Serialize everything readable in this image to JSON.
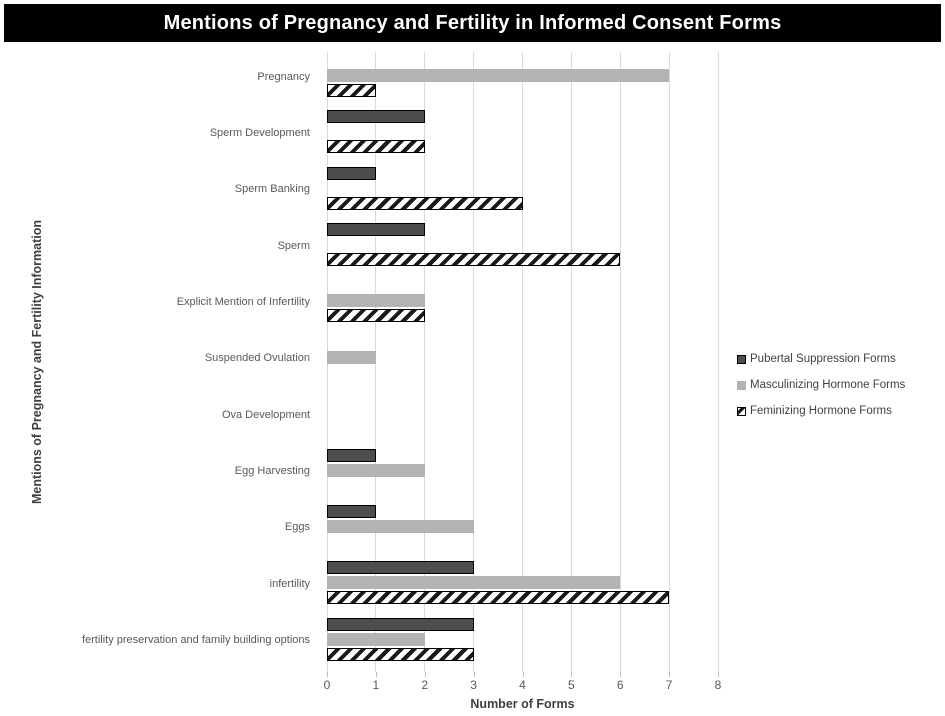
{
  "title": "Mentions of Pregnancy and Fertility in Informed Consent Forms",
  "chart_data": {
    "type": "bar",
    "orientation": "horizontal",
    "title": "Mentions of Pregnancy and Fertility in Informed Consent Forms",
    "xlabel": "Number of Forms",
    "ylabel": "Mentions of Pregnancy and Fertility Information",
    "xlim": [
      0,
      8
    ],
    "xticks": [
      0,
      1,
      2,
      3,
      4,
      5,
      6,
      7,
      8
    ],
    "grid": true,
    "legend_position": "right",
    "categories": [
      "Pregnancy",
      "Sperm Development",
      "Sperm Banking",
      "Sperm",
      "Explicit Mention of Infertility",
      "Suspended Ovulation",
      "Ova Development",
      "Egg Harvesting",
      "Eggs",
      "infertility",
      "fertility preservation and family building options"
    ],
    "series": [
      {
        "name": "Pubertal Suppression Forms",
        "style": "solid-dark",
        "color": "#4d4d4d",
        "values": [
          0,
          2,
          1,
          2,
          0,
          0,
          0,
          1,
          1,
          3,
          3
        ]
      },
      {
        "name": "Masculinizing Hormone Forms",
        "style": "solid-light",
        "color": "#b3b3b3",
        "values": [
          7,
          0,
          0,
          0,
          2,
          1,
          0,
          2,
          3,
          6,
          2
        ]
      },
      {
        "name": "Feminizing Hormone Forms",
        "style": "hatched",
        "color": "#1a1a1a",
        "values": [
          1,
          2,
          4,
          6,
          2,
          0,
          0,
          0,
          0,
          7,
          3
        ]
      }
    ]
  },
  "colors": {
    "title_bg": "#000000",
    "title_fg": "#ffffff",
    "gridline": "#d9d9d9",
    "tick_mark": "#bfbfbf",
    "label_text": "#595959",
    "axis_title_text": "#3f3f3f",
    "legend_text": "#404040",
    "bar_dark": "#4d4d4d",
    "bar_light": "#b3b3b3",
    "bar_hatch": "#1a1a1a"
  }
}
